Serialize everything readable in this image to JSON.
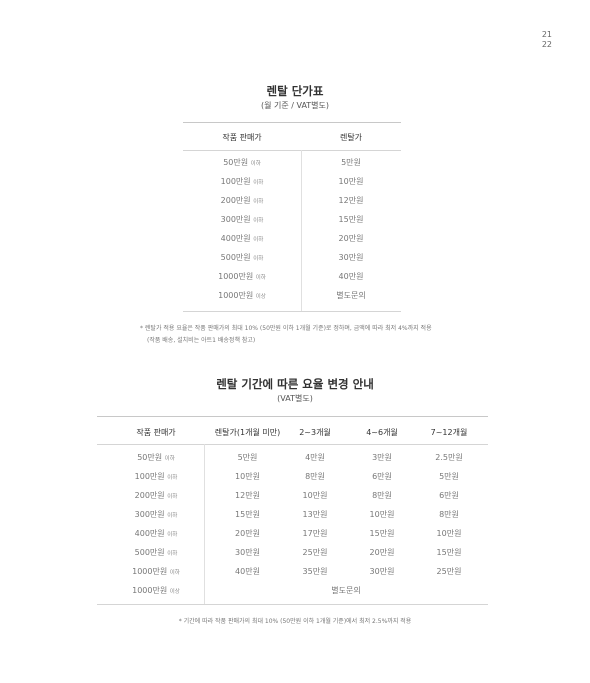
{
  "page_numbers": [
    "21",
    "22"
  ],
  "table1": {
    "title": "렌탈 단가표",
    "subtitle": "(월 기준 / VAT별도)",
    "headers": [
      "작품 판매가",
      "렌탈가"
    ],
    "rows": [
      {
        "price": "50만원",
        "qual": "이하",
        "rent": "5만원"
      },
      {
        "price": "100만원",
        "qual": "이하",
        "rent": "10만원"
      },
      {
        "price": "200만원",
        "qual": "이하",
        "rent": "12만원"
      },
      {
        "price": "300만원",
        "qual": "이하",
        "rent": "15만원"
      },
      {
        "price": "400만원",
        "qual": "이하",
        "rent": "20만원"
      },
      {
        "price": "500만원",
        "qual": "이하",
        "rent": "30만원"
      },
      {
        "price": "1000만원",
        "qual": "이하",
        "rent": "40만원"
      },
      {
        "price": "1000만원",
        "qual": "이상",
        "rent": "별도문의"
      }
    ],
    "note_line1": "* 렌탈가 적용 요율은 작품 판매가의 최대 10% (50만원 이하 1개월 기준)로 정하며, 금액에 따라 최저 4%까지 적용",
    "note_line2": "(작품 배송, 설치비는 아트1 배송정책 참고)"
  },
  "table2": {
    "title": "렌탈 기간에 따른 요율 변경 안내",
    "subtitle": "(VAT별도)",
    "headers": [
      "작품 판매가",
      "렌탈가(1개월 미만)",
      "2~3개월",
      "4~6개월",
      "7~12개월"
    ],
    "rows": [
      {
        "price": "50만원",
        "qual": "이하",
        "c1": "5만원",
        "c2": "4만원",
        "c3": "3만원",
        "c4": "2.5만원"
      },
      {
        "price": "100만원",
        "qual": "이하",
        "c1": "10만원",
        "c2": "8만원",
        "c3": "6만원",
        "c4": "5만원"
      },
      {
        "price": "200만원",
        "qual": "이하",
        "c1": "12만원",
        "c2": "10만원",
        "c3": "8만원",
        "c4": "6만원"
      },
      {
        "price": "300만원",
        "qual": "이하",
        "c1": "15만원",
        "c2": "13만원",
        "c3": "10만원",
        "c4": "8만원"
      },
      {
        "price": "400만원",
        "qual": "이하",
        "c1": "20만원",
        "c2": "17만원",
        "c3": "15만원",
        "c4": "10만원"
      },
      {
        "price": "500만원",
        "qual": "이하",
        "c1": "30만원",
        "c2": "25만원",
        "c3": "20만원",
        "c4": "15만원"
      },
      {
        "price": "1000만원",
        "qual": "이하",
        "c1": "40만원",
        "c2": "35만원",
        "c3": "30만원",
        "c4": "25만원"
      }
    ],
    "last_row": {
      "price": "1000만원",
      "qual": "이상",
      "merged": "별도문의"
    },
    "note": "* 기간에 따라 작품 판매가의 최대 10% (50만원 이하 1개월 기준)에서 최저 2.5%까지 적용"
  }
}
